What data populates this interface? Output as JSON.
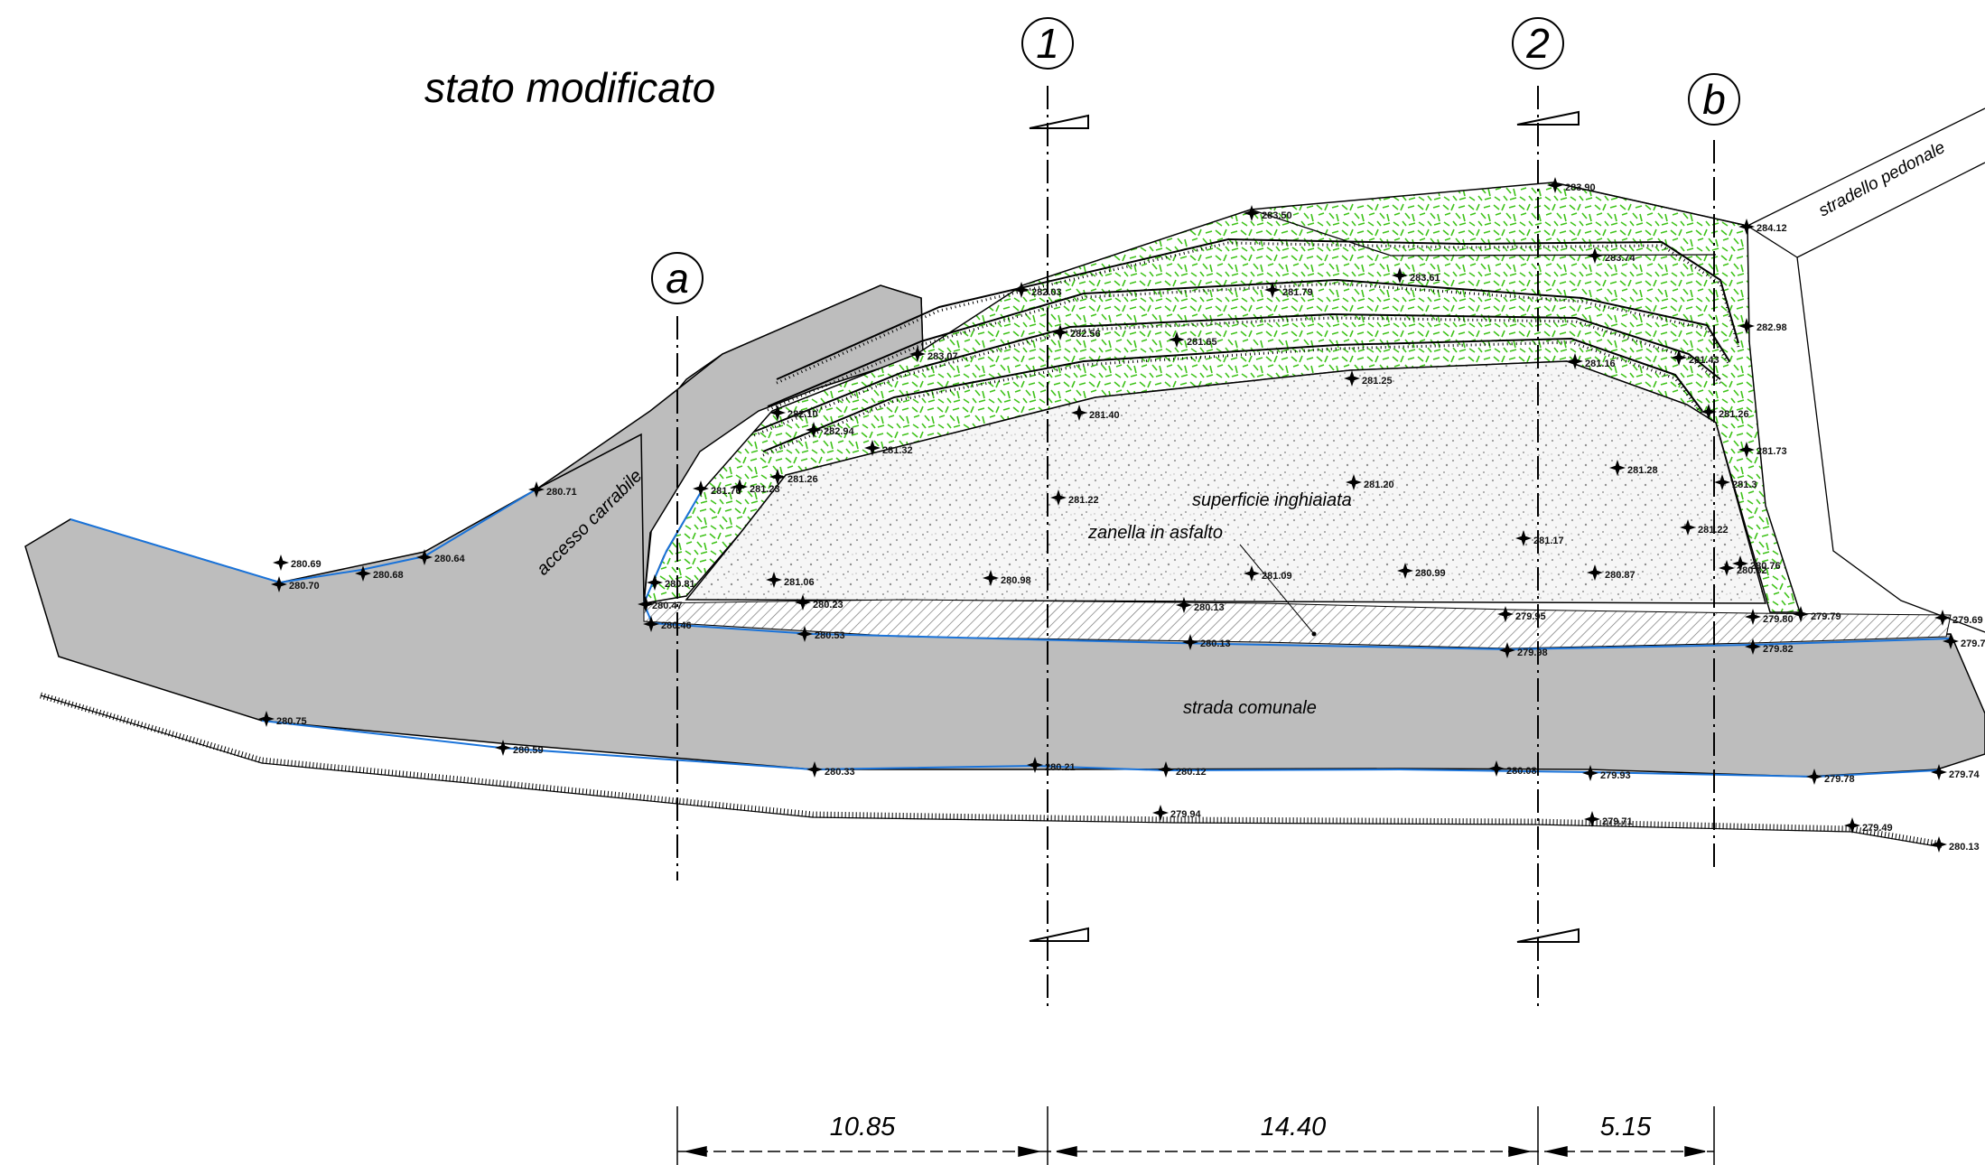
{
  "title": "stato modificato",
  "labels": {
    "accesso": "accesso carrabile",
    "stradello": "stradello pedonale",
    "superficie": "superficie inghiaiata",
    "zanella": "zanella in asfalto",
    "strada": "strada comunale"
  },
  "sections": {
    "a": "a",
    "one": "1",
    "two": "2",
    "b": "b"
  },
  "dimensions": [
    "10.85",
    "14.40",
    "5.15"
  ],
  "colors": {
    "road": "#bdbdbd",
    "grass": "#3fc31a",
    "road_edge": "#1a73d9",
    "gravel_dots": "#9a9a9a"
  },
  "elevations": {
    "e1": "280.69",
    "e2": "280.70",
    "e3": "280.68",
    "e4": "280.64",
    "e5": "280.71",
    "e6": "282.10",
    "e7": "282.94",
    "e8": "281.32",
    "e9": "281.26",
    "e10": "281.76",
    "e11": "281.23",
    "e12": "280.81",
    "e13": "280.47",
    "e14": "280.46",
    "e15": "283.07",
    "e16": "282.03",
    "e17": "282.56",
    "e18": "283.50",
    "e19": "281.79",
    "e20": "281.65",
    "e21": "283.61",
    "e22": "283.90",
    "e23": "283.74",
    "e24": "284.12",
    "e25": "282.98",
    "e26": "281.43",
    "e27": "281.16",
    "e28": "281.25",
    "e29": "281.40",
    "e30": "281.22",
    "e31": "281.20",
    "e32": "281.28",
    "e33": "281.26",
    "e34": "281.73",
    "e35": "281.3",
    "e36": "281.22",
    "e37": "281.17",
    "e38": "280.76",
    "e39": "280.82",
    "e40": "281.06",
    "e41": "280.98",
    "e42": "281.09",
    "e43": "280.99",
    "e44": "280.87",
    "e45": "280.23",
    "e46": "280.13",
    "e47": "279.95",
    "e48": "279.80",
    "e49": "279.79",
    "e50": "279.69",
    "e51": "280.53",
    "e52": "280.13",
    "e53": "279.98",
    "e54": "279.82",
    "e55": "279.7",
    "e56": "280.75",
    "e57": "280.59",
    "e58": "280.33",
    "e59": "280.21",
    "e60": "280.12",
    "e61": "280.08",
    "e62": "279.93",
    "e63": "279.78",
    "e64": "279.74",
    "e65": "279.94",
    "e66": "279.71",
    "e67": "279.49",
    "e68": "280.13"
  }
}
